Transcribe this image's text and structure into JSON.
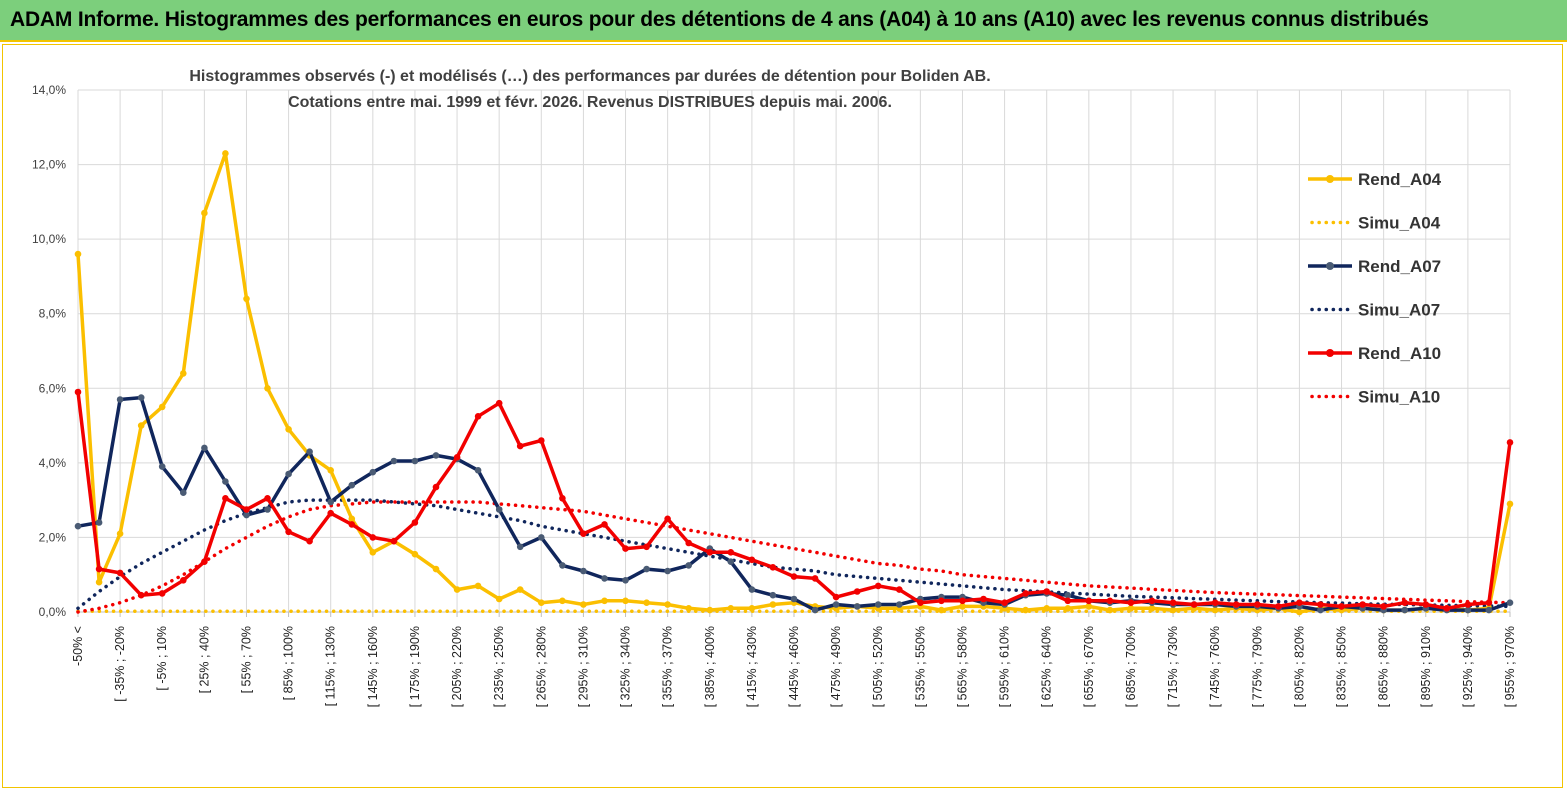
{
  "banner": {
    "title": "ADAM Informe. Histogrammes des performances en euros pour des détentions de 4 ans (A04) à 10 ans (A10) avec les revenus connus distribués"
  },
  "chart_data": {
    "type": "line",
    "title_line1": "Histogrammes observés (-) et modélisés (…) des performances par durées de détention pour Boliden AB.",
    "title_line2": "Cotations entre mai. 1999 et févr. 2026. Revenus DISTRIBUES depuis mai. 2006.",
    "y_ticks": [
      "0,0%",
      "2,0%",
      "4,0%",
      "6,0%",
      "8,0%",
      "10,0%",
      "12,0%",
      "14,0%"
    ],
    "ylim": [
      0,
      14
    ],
    "x_tick_labels": [
      "-50% <",
      "[ -35% ; -20%",
      "[ -5% ; 10%",
      "[ 25% ; 40%",
      "[ 55% ; 70%",
      "[ 85% ; 100%",
      "[ 115% ; 130%",
      "[ 145% ; 160%",
      "[ 175% ; 190%",
      "[ 205% ; 220%",
      "[ 235% ; 250%",
      "[ 265% ; 280%",
      "[ 295% ; 310%",
      "[ 325% ; 340%",
      "[ 355% ; 370%",
      "[ 385% ; 400%",
      "[ 415% ; 430%",
      "[ 445% ; 460%",
      "[ 475% ; 490%",
      "[ 505% ; 520%",
      "[ 535% ; 550%",
      "[ 565% ; 580%",
      "[ 595% ; 610%",
      "[ 625% ; 640%",
      "[ 655% ; 670%",
      "[ 685% ; 700%",
      "[ 715% ; 730%",
      "[ 745% ; 760%",
      "[ 775% ; 790%",
      "[ 805% ; 820%",
      "[ 835% ; 850%",
      "[ 865% ; 880%",
      "[ 895% ; 910%",
      "[ 925% ; 940%",
      "[ 955% ; 970%"
    ],
    "n_bins": 69,
    "grid": true,
    "legend_position": "right",
    "series": [
      {
        "name": "Rend_A04",
        "style": "solid",
        "color": "#fbbf00",
        "values": [
          9.6,
          0.8,
          2.1,
          5.0,
          5.5,
          6.4,
          10.7,
          12.3,
          8.4,
          6.0,
          4.9,
          4.2,
          3.8,
          2.5,
          1.6,
          1.9,
          1.55,
          1.15,
          0.6,
          0.7,
          0.35,
          0.6,
          0.25,
          0.3,
          0.2,
          0.3,
          0.3,
          0.25,
          0.2,
          0.1,
          0.05,
          0.1,
          0.1,
          0.2,
          0.25,
          0.15,
          0.1,
          0.15,
          0.1,
          0.1,
          0.15,
          0.05,
          0.15,
          0.15,
          0.1,
          0.05,
          0.1,
          0.1,
          0.15,
          0.05,
          0.1,
          0.1,
          0.05,
          0.1,
          0.05,
          0.1,
          0.05,
          0.1,
          0.0,
          0.1,
          0.05,
          0.1,
          0.05,
          0.05,
          0.1,
          0.1,
          0.05,
          0.1,
          2.9
        ]
      },
      {
        "name": "Simu_A04",
        "style": "dotted",
        "color": "#fbbf00",
        "values": [
          0.02,
          0.02,
          0.02,
          0.02,
          0.02,
          0.02,
          0.02,
          0.02,
          0.02,
          0.02,
          0.02,
          0.02,
          0.02,
          0.02,
          0.02,
          0.02,
          0.02,
          0.02,
          0.02,
          0.02,
          0.02,
          0.02,
          0.02,
          0.02,
          0.02,
          0.02,
          0.02,
          0.02,
          0.02,
          0.02,
          0.02,
          0.02,
          0.02,
          0.02,
          0.02,
          0.02,
          0.02,
          0.02,
          0.02,
          0.02,
          0.02,
          0.02,
          0.02,
          0.02,
          0.02,
          0.02,
          0.02,
          0.02,
          0.02,
          0.02,
          0.02,
          0.02,
          0.02,
          0.02,
          0.02,
          0.02,
          0.02,
          0.02,
          0.02,
          0.02,
          0.02,
          0.02,
          0.02,
          0.02,
          0.02,
          0.02,
          0.02,
          0.02,
          0.02
        ]
      },
      {
        "name": "Rend_A07",
        "style": "solid",
        "color": "#10265c",
        "values": [
          2.3,
          2.4,
          5.7,
          5.75,
          3.9,
          3.2,
          4.4,
          3.5,
          2.6,
          2.75,
          3.7,
          4.3,
          2.95,
          3.4,
          3.75,
          4.05,
          4.05,
          4.2,
          4.1,
          3.8,
          2.75,
          1.75,
          2.0,
          1.25,
          1.1,
          0.9,
          0.85,
          1.15,
          1.1,
          1.25,
          1.7,
          1.35,
          0.6,
          0.45,
          0.35,
          0.05,
          0.2,
          0.15,
          0.2,
          0.2,
          0.35,
          0.4,
          0.4,
          0.25,
          0.2,
          0.45,
          0.5,
          0.45,
          0.3,
          0.25,
          0.3,
          0.25,
          0.2,
          0.2,
          0.2,
          0.15,
          0.15,
          0.1,
          0.15,
          0.05,
          0.15,
          0.1,
          0.05,
          0.05,
          0.1,
          0.05,
          0.05,
          0.05,
          0.25
        ]
      },
      {
        "name": "Simu_A07",
        "style": "dotted",
        "color": "#10265c",
        "values": [
          0.1,
          0.55,
          0.95,
          1.3,
          1.6,
          1.9,
          2.2,
          2.45,
          2.65,
          2.8,
          2.95,
          3.0,
          3.0,
          3.0,
          3.0,
          2.95,
          2.9,
          2.85,
          2.75,
          2.65,
          2.55,
          2.45,
          2.3,
          2.2,
          2.1,
          2.0,
          1.9,
          1.8,
          1.7,
          1.6,
          1.5,
          1.4,
          1.3,
          1.2,
          1.15,
          1.1,
          1.0,
          0.95,
          0.9,
          0.85,
          0.8,
          0.75,
          0.7,
          0.65,
          0.6,
          0.57,
          0.54,
          0.51,
          0.48,
          0.45,
          0.42,
          0.4,
          0.38,
          0.36,
          0.34,
          0.32,
          0.3,
          0.28,
          0.27,
          0.25,
          0.24,
          0.22,
          0.21,
          0.2,
          0.19,
          0.18,
          0.17,
          0.16,
          0.15
        ]
      },
      {
        "name": "Rend_A10",
        "style": "solid",
        "color": "#f20000",
        "values": [
          5.9,
          1.15,
          1.05,
          0.45,
          0.5,
          0.85,
          1.35,
          3.05,
          2.75,
          3.05,
          2.15,
          1.9,
          2.65,
          2.35,
          2.0,
          1.9,
          2.4,
          3.35,
          4.15,
          5.25,
          5.6,
          4.45,
          4.6,
          3.05,
          2.1,
          2.35,
          1.7,
          1.75,
          2.5,
          1.85,
          1.6,
          1.6,
          1.4,
          1.2,
          0.95,
          0.9,
          0.4,
          0.55,
          0.7,
          0.6,
          0.25,
          0.3,
          0.3,
          0.35,
          0.25,
          0.5,
          0.55,
          0.3,
          0.3,
          0.3,
          0.25,
          0.3,
          0.25,
          0.2,
          0.25,
          0.2,
          0.2,
          0.15,
          0.25,
          0.2,
          0.15,
          0.2,
          0.15,
          0.25,
          0.2,
          0.1,
          0.2,
          0.25,
          4.55
        ]
      },
      {
        "name": "Simu_A10",
        "style": "dotted",
        "color": "#f20000",
        "values": [
          0.0,
          0.1,
          0.25,
          0.45,
          0.7,
          1.0,
          1.35,
          1.7,
          2.0,
          2.3,
          2.55,
          2.75,
          2.85,
          2.9,
          2.95,
          2.95,
          2.95,
          2.95,
          2.95,
          2.95,
          2.9,
          2.85,
          2.8,
          2.75,
          2.7,
          2.6,
          2.5,
          2.4,
          2.3,
          2.2,
          2.1,
          2.0,
          1.9,
          1.8,
          1.7,
          1.6,
          1.5,
          1.4,
          1.3,
          1.25,
          1.15,
          1.1,
          1.0,
          0.95,
          0.9,
          0.85,
          0.8,
          0.75,
          0.7,
          0.67,
          0.64,
          0.61,
          0.58,
          0.55,
          0.52,
          0.5,
          0.48,
          0.46,
          0.44,
          0.42,
          0.4,
          0.38,
          0.36,
          0.34,
          0.32,
          0.3,
          0.28,
          0.26,
          0.25
        ]
      }
    ]
  }
}
